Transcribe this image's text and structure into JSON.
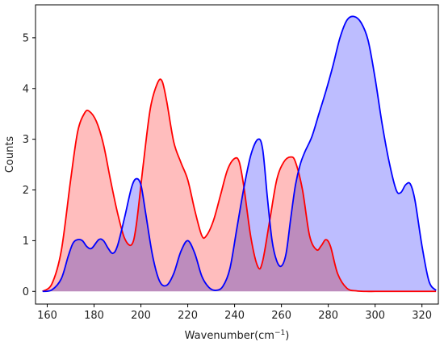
{
  "chart_data": {
    "type": "area",
    "xlabel": "Wavenumber(cm",
    "xlabel_sup": "−1",
    "xlabel_close": ")",
    "ylabel": "Counts",
    "xlim": [
      155,
      327
    ],
    "ylim": [
      -0.25,
      5.65
    ],
    "xticks": [
      160,
      180,
      200,
      220,
      240,
      260,
      280,
      300,
      320
    ],
    "yticks": [
      0,
      1,
      2,
      3,
      4,
      5
    ],
    "grid": false,
    "series": [
      {
        "line_color": "#ff0000",
        "fill_color": "#ffb2b2",
        "x": [
          158,
          162,
          166,
          170,
          173,
          176,
          178,
          181,
          184,
          187,
          190,
          193,
          196,
          198,
          201,
          204,
          207,
          209,
          211,
          214,
          217,
          220,
          223,
          226,
          228,
          231,
          234,
          237,
          240,
          242,
          244,
          247,
          250,
          252,
          255,
          258,
          261,
          264,
          266,
          269,
          272,
          275,
          277,
          279,
          281,
          284,
          288,
          292,
          296,
          300,
          305,
          310,
          315,
          320,
          326
        ],
        "y": [
          0.0,
          0.15,
          0.8,
          2.2,
          3.15,
          3.52,
          3.55,
          3.35,
          2.9,
          2.2,
          1.55,
          1.05,
          0.92,
          1.3,
          2.5,
          3.6,
          4.1,
          4.15,
          3.75,
          2.95,
          2.55,
          2.2,
          1.6,
          1.1,
          1.1,
          1.4,
          1.9,
          2.4,
          2.62,
          2.55,
          2.05,
          1.05,
          0.48,
          0.6,
          1.4,
          2.2,
          2.55,
          2.65,
          2.55,
          2.0,
          1.1,
          0.82,
          0.9,
          1.02,
          0.88,
          0.35,
          0.06,
          0.01,
          0.0,
          0.0,
          0.0,
          0.0,
          0.0,
          0.0,
          0.0
        ]
      },
      {
        "line_color": "#0000ff",
        "fill_color": "#b2b2ff",
        "x": [
          158,
          162,
          166,
          169,
          171,
          173,
          175,
          177,
          179,
          182,
          184,
          186,
          188,
          190,
          193,
          196,
          198,
          200,
          202,
          205,
          208,
          211,
          214,
          217,
          220,
          223,
          226,
          229,
          232,
          235,
          238,
          241,
          244,
          247,
          250,
          252,
          254,
          256,
          258,
          260,
          262,
          264,
          266,
          268,
          270,
          273,
          276,
          279,
          282,
          285,
          288,
          291,
          294,
          297,
          300,
          303,
          306,
          309,
          311,
          313,
          315,
          317,
          320,
          323,
          326
        ],
        "y": [
          0.0,
          0.03,
          0.25,
          0.7,
          0.95,
          1.02,
          1.0,
          0.88,
          0.85,
          1.02,
          1.0,
          0.85,
          0.75,
          0.9,
          1.45,
          2.05,
          2.22,
          2.1,
          1.55,
          0.7,
          0.2,
          0.12,
          0.35,
          0.78,
          1.0,
          0.75,
          0.3,
          0.08,
          0.02,
          0.1,
          0.45,
          1.25,
          2.05,
          2.7,
          3.0,
          2.8,
          1.85,
          1.0,
          0.6,
          0.5,
          0.75,
          1.45,
          2.1,
          2.5,
          2.75,
          3.05,
          3.5,
          3.95,
          4.45,
          5.0,
          5.35,
          5.42,
          5.3,
          4.95,
          4.2,
          3.3,
          2.55,
          2.0,
          1.95,
          2.1,
          2.12,
          1.8,
          0.9,
          0.2,
          0.02
        ]
      }
    ]
  }
}
